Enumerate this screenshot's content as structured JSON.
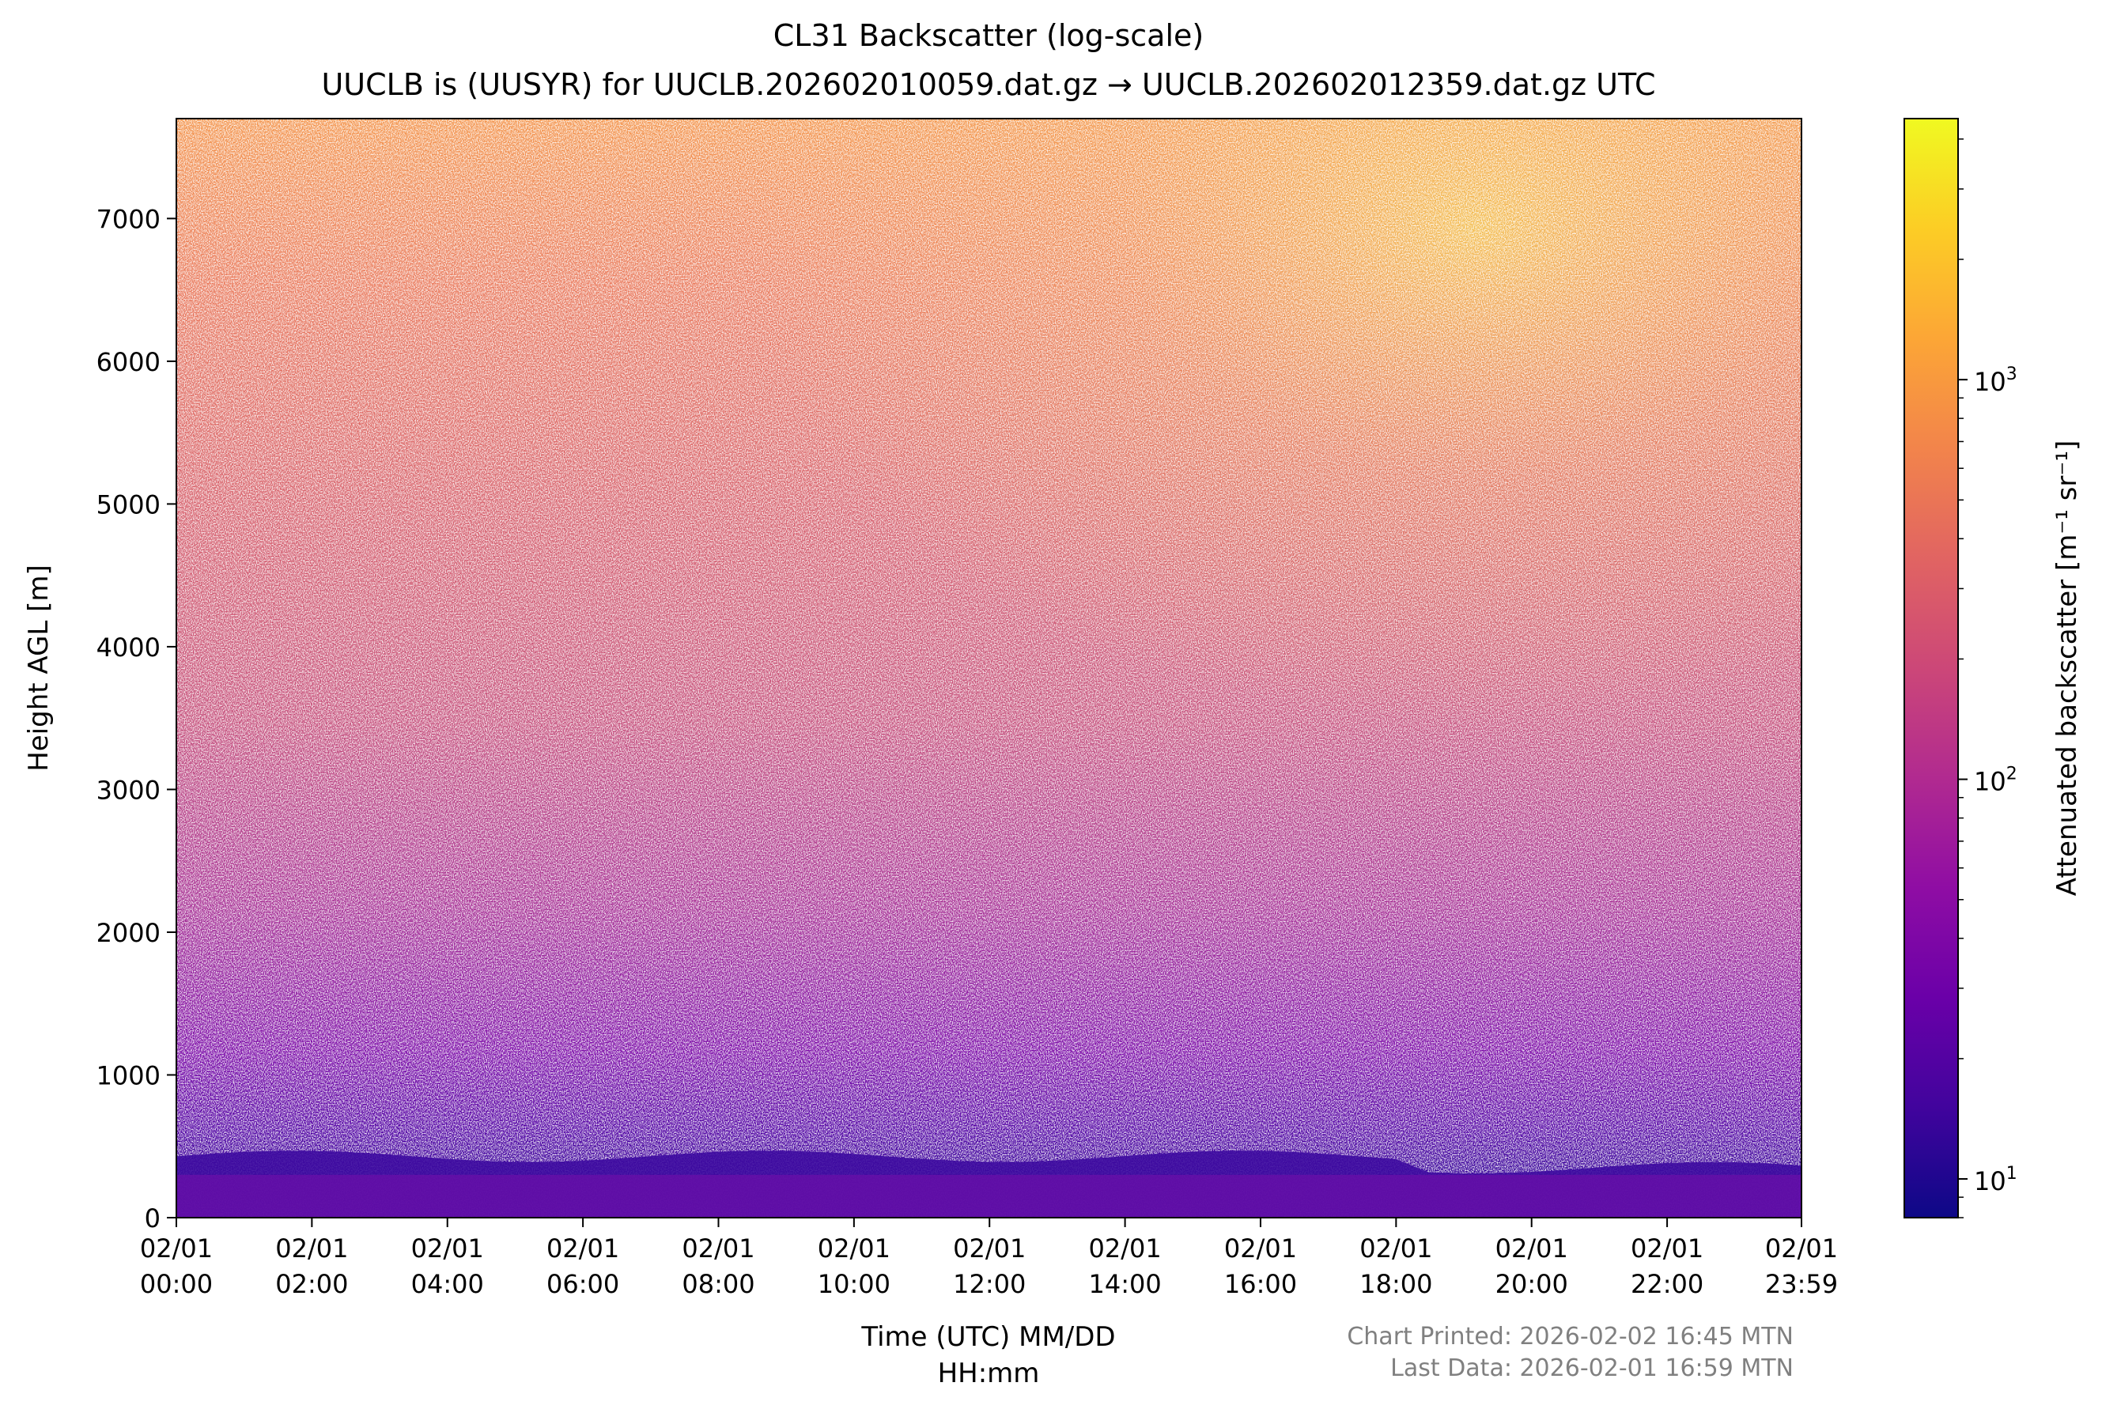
{
  "chart_data": {
    "type": "heatmap",
    "title": "CL31 Backscatter (log-scale)",
    "subtitle": "UUCLB is (UUSYR) for UUCLB.202602010059.dat.gz → UUCLB.202602012359.dat.gz UTC",
    "xlabel": [
      "Time (UTC) MM/DD",
      "HH:mm"
    ],
    "ylabel": "Height AGL [m]",
    "colorbar_label": "Attenuated backscatter [m⁻¹ sr⁻¹]",
    "colormap": "plasma",
    "x_ticks": [
      {
        "date": "02/01",
        "time": "00:00",
        "hour": 0
      },
      {
        "date": "02/01",
        "time": "02:00",
        "hour": 2
      },
      {
        "date": "02/01",
        "time": "04:00",
        "hour": 4
      },
      {
        "date": "02/01",
        "time": "06:00",
        "hour": 6
      },
      {
        "date": "02/01",
        "time": "08:00",
        "hour": 8
      },
      {
        "date": "02/01",
        "time": "10:00",
        "hour": 10
      },
      {
        "date": "02/01",
        "time": "12:00",
        "hour": 12
      },
      {
        "date": "02/01",
        "time": "14:00",
        "hour": 14
      },
      {
        "date": "02/01",
        "time": "16:00",
        "hour": 16
      },
      {
        "date": "02/01",
        "time": "18:00",
        "hour": 18
      },
      {
        "date": "02/01",
        "time": "20:00",
        "hour": 20
      },
      {
        "date": "02/01",
        "time": "22:00",
        "hour": 22
      },
      {
        "date": "02/01",
        "time": "23:59",
        "hour": 23.983
      }
    ],
    "xlim_hours": [
      0,
      23.983
    ],
    "y_ticks": [
      0,
      1000,
      2000,
      3000,
      4000,
      5000,
      6000,
      7000
    ],
    "ylim": [
      0,
      7700
    ],
    "colorbar_ticks": [
      {
        "label": "10",
        "exp": "1",
        "value": 10
      },
      {
        "label": "10",
        "exp": "2",
        "value": 100
      },
      {
        "label": "10",
        "exp": "3",
        "value": 1000
      }
    ],
    "colorbar_range": [
      8,
      4500
    ],
    "colorbar_scale": "log",
    "grid": false
  },
  "footer": {
    "printed": "Chart Printed: 2026-02-02 16:45 MTN",
    "last_data": "Last Data: 2026-02-01 16:59 MTN",
    "color": "#808080"
  }
}
